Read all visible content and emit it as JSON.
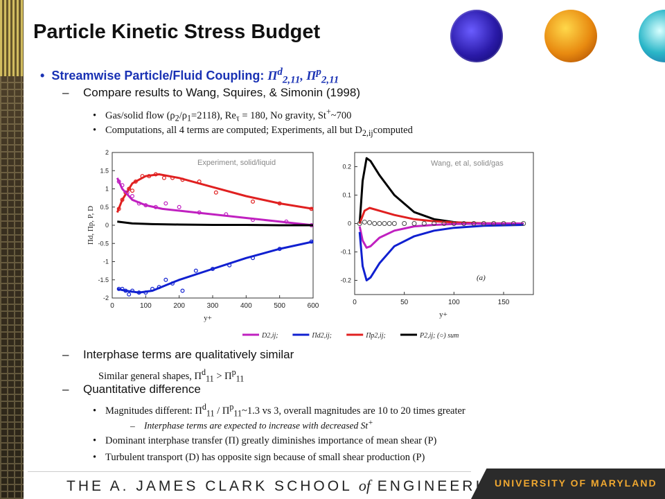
{
  "slide": {
    "title": "Particle Kinetic Stress Budget",
    "bullet1": {
      "label": "Streamwise Particle/Fluid Coupling: ",
      "math": "Π^d_2,11, Π^p_2,11"
    },
    "sub1": "Compare results to Wang, Squires, & Simonin (1998)",
    "sub1_items": [
      "Gas/solid flow (ρ2/ρ1=2118), Reτ = 180, No gravity, St+~700",
      "Computations, all 4 terms are computed; Experiments, all but D2,ij computed"
    ],
    "sub2": "Interphase terms are qualitatively similar",
    "sub2_note": "Similar general shapes, Πd11 > Πp11",
    "sub3": "Quantitative difference",
    "sub3_items": [
      "Magnitudes different: Πd11 / Πp11~1.3 vs 3, overall magnitudes are 10 to 20 times greater",
      "Dominant interphase transfer (Π) greatly diminishes importance of mean shear (P)",
      "Turbulent transport (D) has opposite sign because of small shear production (P)"
    ],
    "sub3_note": "Interphase terms are expected to increase with decreased St+"
  },
  "footer": {
    "left_a": "THE A. JAMES CLARK SCHOOL ",
    "left_of": "of",
    "left_b": " ENGINEERING",
    "right": "UNIVERSITY OF MARYLAND"
  },
  "chart_data": [
    {
      "type": "line",
      "annotation": "Experiment, solid/liquid",
      "xlabel": "y+",
      "ylabel": "Πd, Πp, P, D",
      "xlim": [
        0,
        600
      ],
      "ylim": [
        -2,
        2
      ],
      "xticks": [
        0,
        100,
        200,
        300,
        400,
        500,
        600
      ],
      "yticks": [
        -2,
        -1.5,
        -1,
        -0.5,
        0,
        0.5,
        1,
        1.5,
        2
      ],
      "series": [
        {
          "name": "red",
          "color": "#e02020",
          "x": [
            15,
            30,
            60,
            100,
            140,
            200,
            300,
            400,
            500,
            600
          ],
          "y": [
            0.35,
            0.7,
            1.15,
            1.35,
            1.4,
            1.3,
            1.05,
            0.8,
            0.6,
            0.45
          ],
          "points_x": [
            20,
            30,
            40,
            50,
            60,
            70,
            90,
            110,
            130,
            155,
            180,
            210,
            260,
            310,
            420,
            500,
            595
          ],
          "points_y": [
            0.45,
            0.7,
            0.9,
            1.0,
            0.95,
            1.2,
            1.35,
            1.35,
            1.4,
            1.3,
            1.3,
            1.25,
            1.2,
            0.9,
            0.65,
            0.6,
            0.45
          ]
        },
        {
          "name": "magenta",
          "color": "#c020c0",
          "x": [
            15,
            30,
            60,
            100,
            150,
            200,
            300,
            400,
            500,
            600
          ],
          "y": [
            1.3,
            1.0,
            0.7,
            0.55,
            0.45,
            0.4,
            0.3,
            0.2,
            0.1,
            0.0
          ],
          "points_x": [
            20,
            30,
            45,
            60,
            80,
            100,
            130,
            160,
            200,
            260,
            340,
            420,
            520,
            595
          ],
          "points_y": [
            1.2,
            1.1,
            0.9,
            0.8,
            0.6,
            0.55,
            0.5,
            0.6,
            0.5,
            0.35,
            0.3,
            0.15,
            0.1,
            0.0
          ]
        },
        {
          "name": "black",
          "color": "#000000",
          "x": [
            15,
            60,
            120,
            200,
            300,
            400,
            500,
            600
          ],
          "y": [
            0.1,
            0.05,
            0.03,
            0.02,
            0.01,
            0.01,
            0.0,
            0.0
          ],
          "points_x": [],
          "points_y": []
        },
        {
          "name": "blue",
          "color": "#1020d0",
          "x": [
            15,
            40,
            80,
            120,
            160,
            200,
            300,
            400,
            500,
            600
          ],
          "y": [
            -1.75,
            -1.8,
            -1.85,
            -1.8,
            -1.65,
            -1.5,
            -1.2,
            -0.9,
            -0.65,
            -0.45
          ],
          "points_x": [
            20,
            30,
            40,
            50,
            60,
            80,
            100,
            120,
            140,
            160,
            180,
            210,
            250,
            300,
            350,
            420,
            500,
            595
          ],
          "points_y": [
            -1.75,
            -1.75,
            -1.8,
            -1.9,
            -1.8,
            -1.85,
            -1.85,
            -1.75,
            -1.7,
            -1.5,
            -1.6,
            -1.8,
            -1.25,
            -1.2,
            -1.1,
            -0.9,
            -0.65,
            -0.45
          ]
        }
      ]
    },
    {
      "type": "line",
      "annotation": "Wang, et al, solid/gas",
      "panel_label": "(a)",
      "xlabel": "y+",
      "xlim": [
        0,
        180
      ],
      "ylim": [
        -0.25,
        0.25
      ],
      "xticks": [
        0,
        50,
        100,
        150
      ],
      "yticks": [
        -0.2,
        -0.1,
        0,
        0.1,
        0.2
      ],
      "series": [
        {
          "name": "black",
          "color": "#000000",
          "x": [
            5,
            8,
            12,
            16,
            25,
            40,
            60,
            80,
            100,
            120,
            150,
            170
          ],
          "y": [
            0.0,
            0.15,
            0.23,
            0.22,
            0.17,
            0.1,
            0.04,
            0.015,
            0.005,
            0.0,
            0.0,
            0.0
          ]
        },
        {
          "name": "red",
          "color": "#e02020",
          "x": [
            5,
            10,
            15,
            25,
            40,
            60,
            80,
            100,
            130,
            170
          ],
          "y": [
            0.0,
            0.045,
            0.055,
            0.045,
            0.03,
            0.015,
            0.008,
            0.004,
            0.001,
            0.0
          ]
        },
        {
          "name": "magenta",
          "color": "#c020c0",
          "x": [
            5,
            8,
            12,
            16,
            25,
            40,
            60,
            80,
            100,
            130,
            170
          ],
          "y": [
            -0.01,
            -0.06,
            -0.085,
            -0.08,
            -0.05,
            -0.025,
            -0.01,
            -0.005,
            -0.002,
            0.0,
            0.0
          ]
        },
        {
          "name": "blue",
          "color": "#1020d0",
          "x": [
            5,
            8,
            12,
            16,
            25,
            40,
            60,
            80,
            100,
            130,
            170
          ],
          "y": [
            -0.03,
            -0.15,
            -0.2,
            -0.19,
            -0.14,
            -0.08,
            -0.045,
            -0.025,
            -0.015,
            -0.008,
            -0.005
          ]
        },
        {
          "name": "sum",
          "color": "#444444",
          "markers": "open-circle",
          "x": [
            5,
            10,
            15,
            20,
            25,
            30,
            35,
            40,
            50,
            60,
            70,
            80,
            90,
            100,
            110,
            120,
            130,
            140,
            150,
            160,
            170
          ],
          "y": [
            0.0,
            0.005,
            0.003,
            0.0,
            0.0,
            0.0,
            0.0,
            0.0,
            0.0,
            0.0,
            0.0,
            0.0,
            0.0,
            0.0,
            0.0,
            0.0,
            0.0,
            0.0,
            0.0,
            0.0,
            0.0
          ]
        }
      ]
    }
  ],
  "legend": {
    "entries": [
      {
        "label": "D2,ij;",
        "color": "#c020c0"
      },
      {
        "label": "Πd2,ij;",
        "color": "#1020d0"
      },
      {
        "label": "Πp2,ij;",
        "color": "#e02020"
      },
      {
        "label": "P2,ij; (○) sum",
        "color": "#000000"
      }
    ]
  }
}
